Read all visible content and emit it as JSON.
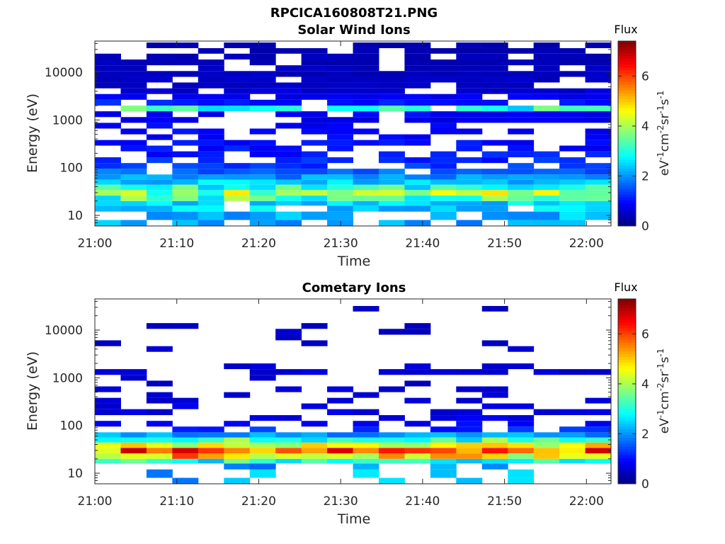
{
  "figure": {
    "title": "RPCICA160808T21.PNG"
  },
  "chart_data": [
    {
      "type": "heatmap",
      "title": "Solar Wind Ions",
      "xlabel": "Time",
      "ylabel": "Energy (eV)",
      "xlim": [
        "21:00",
        "22:03"
      ],
      "ylim": [
        6,
        45000
      ],
      "yscale": "log",
      "x_ticks": [
        "21:00",
        "21:10",
        "21:20",
        "21:30",
        "21:40",
        "21:50",
        "22:00"
      ],
      "y_ticks": [
        "10",
        "100",
        "1000",
        "10000"
      ],
      "colorbar": {
        "title": "Flux",
        "label": "eV-1cm-2sr-1s-1",
        "range": [
          0,
          7.4
        ],
        "ticks": [
          "0",
          "2",
          "4",
          "6"
        ],
        "colormap": "jet"
      },
      "time_bins": 20,
      "bands": [
        {
          "e_min": 6,
          "e_max": 8,
          "flux": 2.2,
          "fill_fraction": 0.55
        },
        {
          "e_min": 8,
          "e_max": 12,
          "flux": 2.2,
          "fill_fraction": 0.55
        },
        {
          "e_min": 12,
          "e_max": 16,
          "flux": 2.4,
          "fill_fraction": 0.7
        },
        {
          "e_min": 16,
          "e_max": 20,
          "flux": 2.5,
          "fill_fraction": 0.95
        },
        {
          "e_min": 20,
          "e_max": 26,
          "flux": 3.1,
          "fill_fraction": 1.0
        },
        {
          "e_min": 26,
          "e_max": 34,
          "flux": 3.6,
          "fill_fraction": 1.0
        },
        {
          "e_min": 34,
          "e_max": 44,
          "flux": 2.9,
          "fill_fraction": 1.0
        },
        {
          "e_min": 44,
          "e_max": 56,
          "flux": 2.4,
          "fill_fraction": 1.0
        },
        {
          "e_min": 56,
          "e_max": 72,
          "flux": 2.0,
          "fill_fraction": 1.0
        },
        {
          "e_min": 72,
          "e_max": 95,
          "flux": 1.6,
          "fill_fraction": 0.9
        },
        {
          "e_min": 95,
          "e_max": 125,
          "flux": 1.3,
          "fill_fraction": 0.75
        },
        {
          "e_min": 125,
          "e_max": 165,
          "flux": 1.2,
          "fill_fraction": 0.65
        },
        {
          "e_min": 165,
          "e_max": 220,
          "flux": 1.1,
          "fill_fraction": 0.6
        },
        {
          "e_min": 220,
          "e_max": 290,
          "flux": 1.0,
          "fill_fraction": 0.55
        },
        {
          "e_min": 290,
          "e_max": 380,
          "flux": 1.0,
          "fill_fraction": 0.5
        },
        {
          "e_min": 380,
          "e_max": 500,
          "flux": 0.9,
          "fill_fraction": 0.55
        },
        {
          "e_min": 500,
          "e_max": 660,
          "flux": 0.9,
          "fill_fraction": 0.6
        },
        {
          "e_min": 660,
          "e_max": 870,
          "flux": 0.9,
          "fill_fraction": 0.6
        },
        {
          "e_min": 870,
          "e_max": 1150,
          "flux": 0.8,
          "fill_fraction": 0.65
        },
        {
          "e_min": 1150,
          "e_max": 1520,
          "flux": 0.9,
          "fill_fraction": 0.7
        },
        {
          "e_min": 1520,
          "e_max": 2000,
          "flux": 2.8,
          "fill_fraction": 0.75
        },
        {
          "e_min": 2000,
          "e_max": 2650,
          "flux": 1.1,
          "fill_fraction": 0.8
        },
        {
          "e_min": 2650,
          "e_max": 3500,
          "flux": 0.8,
          "fill_fraction": 0.75
        },
        {
          "e_min": 3500,
          "e_max": 4600,
          "flux": 0.6,
          "fill_fraction": 0.8
        },
        {
          "e_min": 4600,
          "e_max": 6100,
          "flux": 0.5,
          "fill_fraction": 0.8
        },
        {
          "e_min": 6100,
          "e_max": 8000,
          "flux": 0.5,
          "fill_fraction": 0.8
        },
        {
          "e_min": 8000,
          "e_max": 10600,
          "flux": 0.45,
          "fill_fraction": 0.85
        },
        {
          "e_min": 10600,
          "e_max": 14000,
          "flux": 0.45,
          "fill_fraction": 0.8
        },
        {
          "e_min": 14000,
          "e_max": 18500,
          "flux": 0.4,
          "fill_fraction": 0.8
        },
        {
          "e_min": 18500,
          "e_max": 24500,
          "flux": 0.4,
          "fill_fraction": 0.75
        },
        {
          "e_min": 24500,
          "e_max": 32000,
          "flux": 0.35,
          "fill_fraction": 0.75
        },
        {
          "e_min": 32000,
          "e_max": 42000,
          "flux": 0.35,
          "fill_fraction": 0.7
        }
      ]
    },
    {
      "type": "heatmap",
      "title": "Cometary Ions",
      "xlabel": "Time",
      "ylabel": "Energy (eV)",
      "xlim": [
        "21:00",
        "22:03"
      ],
      "ylim": [
        6,
        45000
      ],
      "yscale": "log",
      "x_ticks": [
        "21:00",
        "21:10",
        "21:20",
        "21:30",
        "21:40",
        "21:50",
        "22:00"
      ],
      "y_ticks": [
        "10",
        "100",
        "1000",
        "10000"
      ],
      "colorbar": {
        "title": "Flux",
        "label": "eV-1cm-2sr-1s-1",
        "range": [
          0,
          7.4
        ],
        "ticks": [
          "0",
          "2",
          "4",
          "6"
        ],
        "colormap": "jet"
      },
      "time_bins": 20,
      "bands": [
        {
          "e_min": 6,
          "e_max": 8,
          "flux": 2.2,
          "fill_fraction": 0.25
        },
        {
          "e_min": 8,
          "e_max": 12,
          "flux": 2.2,
          "fill_fraction": 0.25
        },
        {
          "e_min": 12,
          "e_max": 16,
          "flux": 2.0,
          "fill_fraction": 0.45
        },
        {
          "e_min": 16,
          "e_max": 20,
          "flux": 2.8,
          "fill_fraction": 1.0
        },
        {
          "e_min": 20,
          "e_max": 26,
          "flux": 4.6,
          "fill_fraction": 1.0
        },
        {
          "e_min": 26,
          "e_max": 34,
          "flux": 5.4,
          "fill_fraction": 1.0
        },
        {
          "e_min": 34,
          "e_max": 44,
          "flux": 4.2,
          "fill_fraction": 1.0
        },
        {
          "e_min": 44,
          "e_max": 56,
          "flux": 3.0,
          "fill_fraction": 1.0
        },
        {
          "e_min": 56,
          "e_max": 72,
          "flux": 2.0,
          "fill_fraction": 1.0
        },
        {
          "e_min": 72,
          "e_max": 95,
          "flux": 1.2,
          "fill_fraction": 0.6
        },
        {
          "e_min": 95,
          "e_max": 125,
          "flux": 0.9,
          "fill_fraction": 0.45
        },
        {
          "e_min": 125,
          "e_max": 165,
          "flux": 0.8,
          "fill_fraction": 0.4
        },
        {
          "e_min": 165,
          "e_max": 220,
          "flux": 0.7,
          "fill_fraction": 0.35
        },
        {
          "e_min": 220,
          "e_max": 290,
          "flux": 0.7,
          "fill_fraction": 0.3
        },
        {
          "e_min": 290,
          "e_max": 380,
          "flux": 0.6,
          "fill_fraction": 0.25
        },
        {
          "e_min": 380,
          "e_max": 500,
          "flux": 0.6,
          "fill_fraction": 0.2
        },
        {
          "e_min": 500,
          "e_max": 660,
          "flux": 0.6,
          "fill_fraction": 0.15
        },
        {
          "e_min": 660,
          "e_max": 870,
          "flux": 0.5,
          "fill_fraction": 0.1
        },
        {
          "e_min": 870,
          "e_max": 1150,
          "flux": 0.5,
          "fill_fraction": 0.08
        },
        {
          "e_min": 1150,
          "e_max": 1520,
          "flux": 0.6,
          "fill_fraction": 0.45
        },
        {
          "e_min": 1520,
          "e_max": 2000,
          "flux": 0.6,
          "fill_fraction": 0.3
        },
        {
          "e_min": 2000,
          "e_max": 2650,
          "flux": 0.5,
          "fill_fraction": 0.1
        },
        {
          "e_min": 2650,
          "e_max": 3500,
          "flux": 0.5,
          "fill_fraction": 0.1
        },
        {
          "e_min": 3500,
          "e_max": 4600,
          "flux": 0.5,
          "fill_fraction": 0.08
        },
        {
          "e_min": 4600,
          "e_max": 6100,
          "flux": 0.5,
          "fill_fraction": 0.08
        },
        {
          "e_min": 6100,
          "e_max": 8000,
          "flux": 0.5,
          "fill_fraction": 0.12
        },
        {
          "e_min": 8000,
          "e_max": 10600,
          "flux": 0.5,
          "fill_fraction": 0.15
        },
        {
          "e_min": 10600,
          "e_max": 14000,
          "flux": 0.5,
          "fill_fraction": 0.1
        },
        {
          "e_min": 14000,
          "e_max": 18500,
          "flux": 0.0,
          "fill_fraction": 0.0
        },
        {
          "e_min": 18500,
          "e_max": 24500,
          "flux": 0.0,
          "fill_fraction": 0.0
        },
        {
          "e_min": 24500,
          "e_max": 32000,
          "flux": 0.5,
          "fill_fraction": 0.05
        },
        {
          "e_min": 32000,
          "e_max": 42000,
          "flux": 0.0,
          "fill_fraction": 0.0
        }
      ]
    }
  ]
}
